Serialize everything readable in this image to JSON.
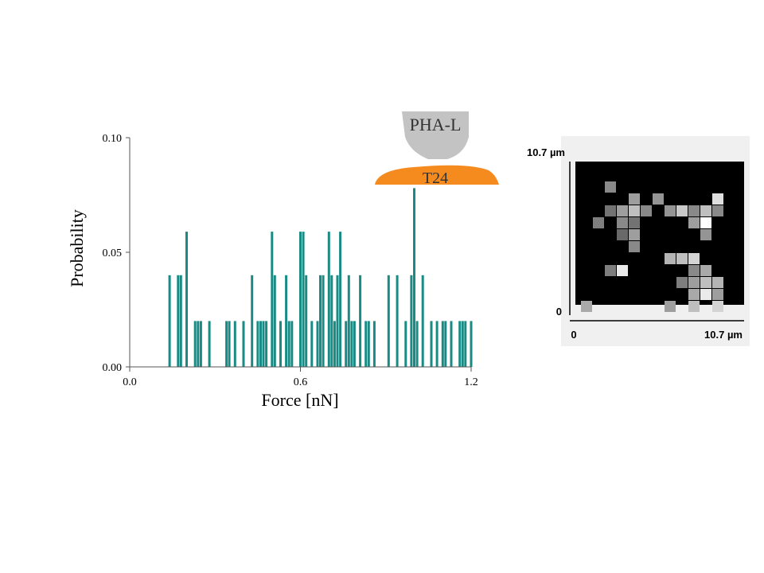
{
  "chart_data": [
    {
      "type": "bar",
      "xlabel": "Force [nN]",
      "ylabel": "Probability",
      "xlim": [
        0.0,
        1.2
      ],
      "ylim": [
        0.0,
        0.1
      ],
      "x_ticks": [
        "0.0",
        "0.6",
        "1.2"
      ],
      "y_ticks": [
        "0.00",
        "0.05",
        "0.10"
      ],
      "color": "#1a8a84",
      "x": [
        0.14,
        0.17,
        0.18,
        0.2,
        0.23,
        0.24,
        0.25,
        0.28,
        0.34,
        0.35,
        0.37,
        0.4,
        0.43,
        0.45,
        0.46,
        0.47,
        0.48,
        0.5,
        0.51,
        0.53,
        0.55,
        0.56,
        0.57,
        0.6,
        0.61,
        0.62,
        0.64,
        0.66,
        0.67,
        0.68,
        0.7,
        0.71,
        0.72,
        0.73,
        0.74,
        0.76,
        0.77,
        0.78,
        0.79,
        0.81,
        0.83,
        0.84,
        0.86,
        0.91,
        0.94,
        0.97,
        0.99,
        1.0,
        1.01,
        1.03,
        1.06,
        1.08,
        1.1,
        1.11,
        1.13,
        1.16,
        1.17,
        1.18,
        1.2
      ],
      "values": [
        0.04,
        0.04,
        0.04,
        0.059,
        0.02,
        0.02,
        0.02,
        0.02,
        0.02,
        0.02,
        0.02,
        0.02,
        0.04,
        0.02,
        0.02,
        0.02,
        0.02,
        0.059,
        0.04,
        0.02,
        0.04,
        0.02,
        0.02,
        0.059,
        0.059,
        0.04,
        0.02,
        0.02,
        0.04,
        0.04,
        0.059,
        0.04,
        0.02,
        0.04,
        0.059,
        0.02,
        0.04,
        0.02,
        0.02,
        0.04,
        0.02,
        0.02,
        0.02,
        0.04,
        0.04,
        0.02,
        0.04,
        0.078,
        0.02,
        0.04,
        0.02,
        0.02,
        0.02,
        0.02,
        0.02,
        0.02,
        0.02,
        0.02,
        0.02
      ]
    },
    {
      "type": "heatmap",
      "x_labels": [
        "0",
        "10.7 µm"
      ],
      "y_labels": [
        "0",
        "10.7 µm"
      ],
      "grid_size": 14,
      "cells": [
        {
          "col": 2,
          "row": 1,
          "value": 0.45
        },
        {
          "col": 4,
          "row": 2,
          "value": 0.55
        },
        {
          "col": 6,
          "row": 2,
          "value": 0.5
        },
        {
          "col": 11,
          "row": 2,
          "value": 0.85
        },
        {
          "col": 2,
          "row": 3,
          "value": 0.35
        },
        {
          "col": 3,
          "row": 3,
          "value": 0.55
        },
        {
          "col": 4,
          "row": 3,
          "value": 0.7
        },
        {
          "col": 5,
          "row": 3,
          "value": 0.45
        },
        {
          "col": 7,
          "row": 3,
          "value": 0.5
        },
        {
          "col": 8,
          "row": 3,
          "value": 0.75
        },
        {
          "col": 9,
          "row": 3,
          "value": 0.45
        },
        {
          "col": 10,
          "row": 3,
          "value": 0.7
        },
        {
          "col": 11,
          "row": 3,
          "value": 0.45
        },
        {
          "col": 1,
          "row": 4,
          "value": 0.4
        },
        {
          "col": 3,
          "row": 4,
          "value": 0.45
        },
        {
          "col": 4,
          "row": 4,
          "value": 0.35
        },
        {
          "col": 9,
          "row": 4,
          "value": 0.55
        },
        {
          "col": 10,
          "row": 4,
          "value": 1.0
        },
        {
          "col": 3,
          "row": 5,
          "value": 0.3
        },
        {
          "col": 4,
          "row": 5,
          "value": 0.55
        },
        {
          "col": 10,
          "row": 5,
          "value": 0.5
        },
        {
          "col": 4,
          "row": 6,
          "value": 0.45
        },
        {
          "col": 7,
          "row": 7,
          "value": 0.65
        },
        {
          "col": 8,
          "row": 7,
          "value": 0.7
        },
        {
          "col": 9,
          "row": 7,
          "value": 0.8
        },
        {
          "col": 2,
          "row": 8,
          "value": 0.4
        },
        {
          "col": 3,
          "row": 8,
          "value": 0.9
        },
        {
          "col": 9,
          "row": 8,
          "value": 0.45
        },
        {
          "col": 10,
          "row": 8,
          "value": 0.6
        },
        {
          "col": 8,
          "row": 9,
          "value": 0.4
        },
        {
          "col": 9,
          "row": 9,
          "value": 0.55
        },
        {
          "col": 10,
          "row": 9,
          "value": 0.7
        },
        {
          "col": 11,
          "row": 9,
          "value": 0.65
        },
        {
          "col": 9,
          "row": 10,
          "value": 0.6
        },
        {
          "col": 10,
          "row": 10,
          "value": 0.9
        },
        {
          "col": 11,
          "row": 10,
          "value": 0.55
        },
        {
          "col": 0,
          "row": 11,
          "value": 0.6
        },
        {
          "col": 7,
          "row": 11,
          "value": 0.55
        },
        {
          "col": 9,
          "row": 11,
          "value": 0.7
        },
        {
          "col": 11,
          "row": 11,
          "value": 0.8
        }
      ]
    }
  ],
  "inset": {
    "probe_label": "PHA-L",
    "cell_label": "T24",
    "probe_color": "#c3c3c3",
    "cell_color": "#f58a1f"
  }
}
